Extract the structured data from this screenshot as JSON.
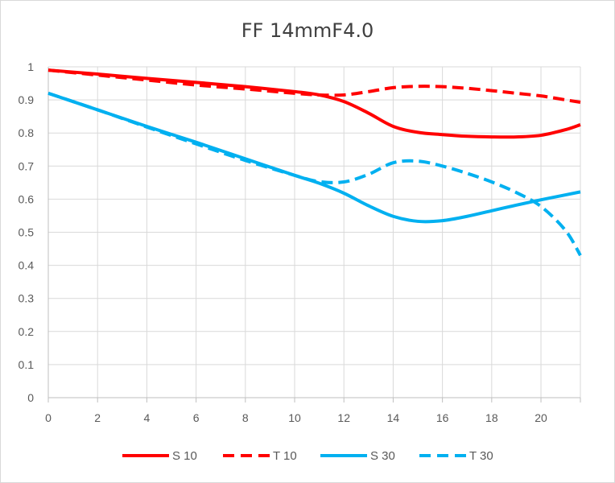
{
  "chart_data": {
    "type": "line",
    "title": "FF 14mmF4.0",
    "xlabel": "",
    "ylabel": "",
    "xlim": [
      0,
      21.6
    ],
    "ylim": [
      0,
      1
    ],
    "x_ticks": [
      0,
      2,
      4,
      6,
      8,
      10,
      12,
      14,
      16,
      18,
      20
    ],
    "y_ticks": [
      0,
      0.1,
      0.2,
      0.3,
      0.4,
      0.5,
      0.6,
      0.7,
      0.8,
      0.9,
      1
    ],
    "x_tick_labels": [
      "0",
      "2",
      "4",
      "6",
      "8",
      "10",
      "12",
      "14",
      "16",
      "18",
      "20"
    ],
    "y_tick_labels": [
      "0",
      "0.1",
      "0.2",
      "0.3",
      "0.4",
      "0.5",
      "0.6",
      "0.7",
      "0.8",
      "0.9",
      "1"
    ],
    "grid": true,
    "legend_position": "bottom",
    "series": [
      {
        "name": "S 10",
        "color": "#ff0000",
        "dash": "solid",
        "x": [
          0,
          2,
          4,
          6,
          8,
          10,
          11,
          12,
          13,
          14,
          15,
          16,
          17,
          18,
          19,
          20,
          21,
          21.6
        ],
        "y": [
          0.99,
          0.978,
          0.965,
          0.953,
          0.94,
          0.925,
          0.915,
          0.895,
          0.86,
          0.82,
          0.802,
          0.795,
          0.79,
          0.788,
          0.788,
          0.793,
          0.81,
          0.825
        ]
      },
      {
        "name": "T 10",
        "color": "#ff0000",
        "dash": "dashed",
        "x": [
          0,
          2,
          4,
          6,
          8,
          10,
          11,
          12,
          13,
          14,
          15,
          16,
          17,
          18,
          19,
          20,
          21,
          21.6
        ],
        "y": [
          0.99,
          0.975,
          0.96,
          0.945,
          0.933,
          0.92,
          0.915,
          0.915,
          0.925,
          0.937,
          0.941,
          0.94,
          0.935,
          0.928,
          0.92,
          0.912,
          0.9,
          0.893
        ]
      },
      {
        "name": "S 30",
        "color": "#00b0f0",
        "dash": "solid",
        "x": [
          0,
          2,
          4,
          6,
          8,
          10,
          11,
          12,
          13,
          14,
          15,
          16,
          17,
          18,
          19,
          20,
          21,
          21.6
        ],
        "y": [
          0.92,
          0.87,
          0.82,
          0.772,
          0.722,
          0.672,
          0.648,
          0.618,
          0.58,
          0.548,
          0.533,
          0.535,
          0.548,
          0.565,
          0.582,
          0.598,
          0.613,
          0.622
        ]
      },
      {
        "name": "T 30",
        "color": "#00b0f0",
        "dash": "dashed",
        "x": [
          0,
          2,
          4,
          6,
          8,
          10,
          11,
          12,
          13,
          14,
          15,
          16,
          17,
          18,
          19,
          20,
          21,
          21.6
        ],
        "y": [
          0.92,
          0.87,
          0.818,
          0.767,
          0.717,
          0.672,
          0.653,
          0.652,
          0.675,
          0.71,
          0.715,
          0.7,
          0.678,
          0.652,
          0.62,
          0.578,
          0.505,
          0.43
        ]
      }
    ]
  }
}
